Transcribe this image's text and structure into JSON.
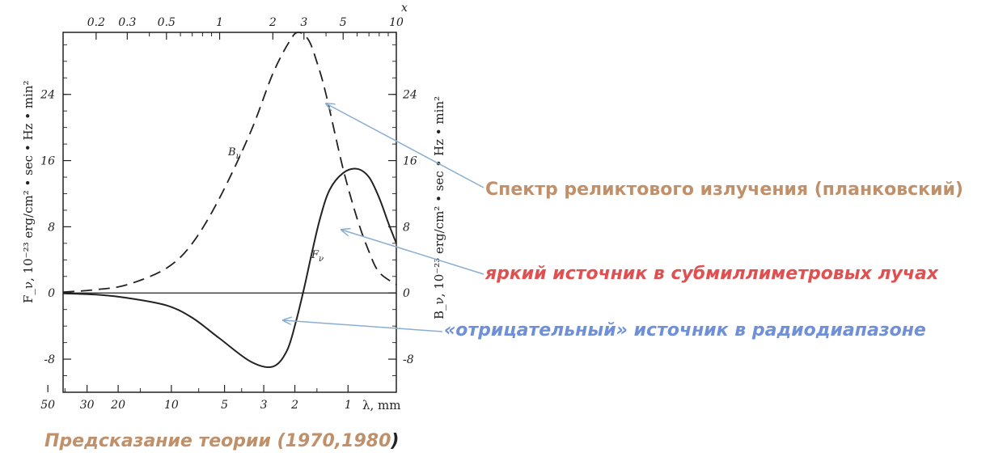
{
  "colors": {
    "planck_note": "#c0906a",
    "bright_note": "#e05050",
    "negative_note": "#6f8fd8",
    "caption": "#c0906a",
    "arrow": "#8aaed0",
    "ink": "#222222"
  },
  "annotations": {
    "planck": "Спектр реликтового излучения (планковский)",
    "bright": "яркий источник в субмиллиметровых лучах",
    "negative": "«отрицательный» источник в радиодиапазоне"
  },
  "caption": {
    "text": "Предсказание теории (1970,1980",
    "close_paren": ")"
  },
  "chart_data": {
    "type": "line",
    "x_axis_top": {
      "label": "x",
      "ticks": [
        "0.2",
        "0.3",
        "0.5",
        "1",
        "2",
        "3",
        "5",
        "10"
      ],
      "scale": "log",
      "range": [
        0.13,
        10
      ]
    },
    "x_axis_bottom": {
      "label": "λ, mm",
      "ticks": [
        "50",
        "30",
        "20",
        "10",
        "5",
        "3",
        "2",
        "1"
      ]
    },
    "y_axis_left": {
      "label": "F_ν, 10⁻²³ erg/cm² • sec • Hz • min²",
      "ticks": [
        "-8",
        "0",
        "8",
        "16",
        "24"
      ],
      "range": [
        -12,
        31.5
      ]
    },
    "y_axis_right": {
      "label": "B_ν, 10⁻²³ erg/cm² • sec • Hz • min²",
      "ticks": [
        "-8",
        "0",
        "8",
        "16",
        "24"
      ],
      "range": [
        -12,
        31.5
      ]
    },
    "series": [
      {
        "name": "Bν",
        "style": "dashed",
        "x": [
          0.13,
          0.2,
          0.3,
          0.5,
          0.7,
          1.0,
          1.5,
          2.0,
          2.5,
          2.8,
          3.2,
          3.6,
          4.0,
          5.0,
          6.0,
          7.0,
          8.0,
          10.0
        ],
        "y": [
          0.1,
          0.4,
          1.0,
          3.0,
          6.0,
          11.5,
          19.5,
          26.5,
          30.5,
          31.5,
          30.5,
          27.5,
          24.0,
          15.0,
          9.0,
          5.0,
          2.5,
          1.0
        ]
      },
      {
        "name": "Fν",
        "style": "solid",
        "x": [
          0.13,
          0.2,
          0.3,
          0.5,
          0.7,
          1.0,
          1.5,
          2.0,
          2.4,
          2.7,
          3.0,
          3.3,
          3.7,
          4.2,
          5.0,
          6.0,
          7.0,
          8.0,
          9.0,
          10.0
        ],
        "y": [
          -0.05,
          -0.2,
          -0.6,
          -1.5,
          -3.0,
          -5.5,
          -8.3,
          -8.9,
          -7.0,
          -3.5,
          0.5,
          4.5,
          9.0,
          12.5,
          14.5,
          15.0,
          14.0,
          11.5,
          8.5,
          6.0
        ]
      }
    ]
  }
}
